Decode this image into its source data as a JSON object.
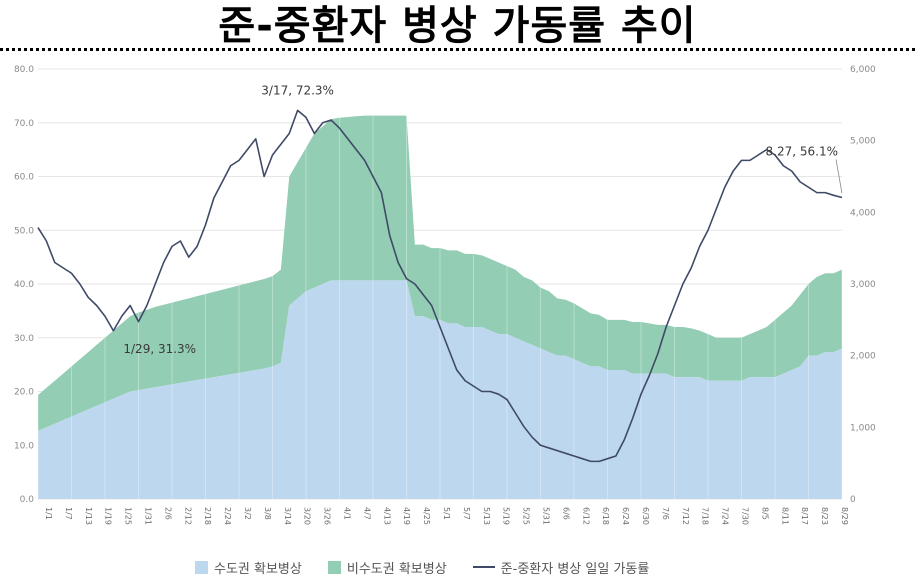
{
  "title": "준-중환자 병상 가동률 추이",
  "chart_data": {
    "type": "area",
    "y_left": {
      "min": 0,
      "max": 80,
      "ticks": [
        "0.0",
        "10.0",
        "20.0",
        "30.0",
        "40.0",
        "50.0",
        "60.0",
        "70.0",
        "80.0"
      ]
    },
    "y_right": {
      "min": 0,
      "max": 6000,
      "ticks": [
        "0",
        "1,000",
        "2,000",
        "3,000",
        "4,000",
        "5,000",
        "6,000"
      ]
    },
    "n_points": 97,
    "x_ticks": [
      "1/1",
      "1/7",
      "1/13",
      "1/19",
      "1/25",
      "1/31",
      "2/6",
      "2/12",
      "2/18",
      "2/24",
      "3/2",
      "3/8",
      "3/14",
      "3/20",
      "3/26",
      "4/1",
      "4/7",
      "4/13",
      "4/19",
      "4/25",
      "5/1",
      "5/7",
      "5/13",
      "5/19",
      "5/25",
      "5/31",
      "6/6",
      "6/12",
      "6/18",
      "6/24",
      "6/30",
      "7/6",
      "7/12",
      "7/18",
      "7/24",
      "7/30",
      "8/5",
      "8/11",
      "8/17",
      "8/23",
      "8/29"
    ],
    "series": [
      {
        "name": "수도권 확보병상",
        "color": "#bdd7ee",
        "axis": "right",
        "values": [
          950,
          1000,
          1050,
          1100,
          1150,
          1200,
          1250,
          1300,
          1350,
          1400,
          1450,
          1500,
          1520,
          1540,
          1560,
          1580,
          1600,
          1620,
          1640,
          1660,
          1680,
          1700,
          1720,
          1740,
          1760,
          1780,
          1800,
          1820,
          1850,
          1900,
          2700,
          2800,
          2900,
          2950,
          3000,
          3050,
          3050,
          3050,
          3050,
          3050,
          3050,
          3050,
          3050,
          3050,
          3050,
          2550,
          2550,
          2500,
          2500,
          2450,
          2450,
          2400,
          2400,
          2400,
          2350,
          2300,
          2300,
          2250,
          2200,
          2150,
          2100,
          2050,
          2000,
          2000,
          1950,
          1900,
          1850,
          1850,
          1800,
          1800,
          1800,
          1750,
          1750,
          1750,
          1750,
          1750,
          1700,
          1700,
          1700,
          1700,
          1650,
          1650,
          1650,
          1650,
          1650,
          1700,
          1700,
          1700,
          1700,
          1750,
          1800,
          1850,
          2000,
          2000,
          2050,
          2050,
          2100
        ]
      },
      {
        "name": "비수도권 확보병상",
        "color": "#93cdb4",
        "axis": "right",
        "values": [
          500,
          550,
          600,
          650,
          700,
          750,
          800,
          850,
          900,
          950,
          1000,
          1050,
          1080,
          1100,
          1120,
          1130,
          1140,
          1150,
          1160,
          1170,
          1180,
          1190,
          1200,
          1210,
          1220,
          1230,
          1240,
          1250,
          1260,
          1300,
          1800,
          1900,
          2000,
          2150,
          2200,
          2250,
          2270,
          2280,
          2290,
          2300,
          2300,
          2300,
          2300,
          2300,
          2300,
          1000,
          1000,
          1000,
          1000,
          1020,
          1020,
          1020,
          1020,
          1000,
          1000,
          1000,
          950,
          950,
          900,
          900,
          850,
          850,
          800,
          780,
          780,
          760,
          740,
          720,
          700,
          700,
          700,
          720,
          720,
          700,
          680,
          680,
          700,
          700,
          680,
          650,
          650,
          600,
          600,
          600,
          600,
          600,
          650,
          700,
          800,
          850,
          900,
          1000,
          1000,
          1100,
          1100,
          1100,
          1100
        ]
      },
      {
        "name": "준-중환자 병상 일일 가동률",
        "color": "#3f4a66",
        "axis": "left",
        "values": [
          50.5,
          48,
          44,
          43,
          42,
          40,
          37.5,
          36,
          34,
          31.3,
          34,
          36,
          33,
          36,
          40,
          44,
          47,
          48,
          45,
          47,
          51,
          56,
          59,
          62,
          63,
          65,
          67,
          60,
          64,
          66,
          68,
          72.3,
          71,
          68,
          70,
          70.5,
          69,
          67,
          65,
          63,
          60,
          57,
          49,
          44,
          41,
          40,
          38,
          36,
          32,
          28,
          24,
          22,
          21,
          20,
          20,
          19.5,
          18.5,
          16,
          13.5,
          11.5,
          10,
          9.5,
          9,
          8.5,
          8,
          7.5,
          7,
          7,
          7.5,
          8,
          11,
          15,
          19.5,
          23,
          27,
          32,
          36,
          40,
          43,
          47,
          50,
          54,
          58,
          61,
          63,
          63,
          64,
          65,
          64,
          62,
          61,
          59,
          58,
          57,
          57,
          56.5,
          56.1
        ]
      }
    ],
    "annotations": [
      {
        "text": "1/29, 31.3%",
        "index": 9
      },
      {
        "text": "3/17, 72.3%",
        "index": 31
      },
      {
        "text": "8.27, 56.1%",
        "index": 96
      }
    ],
    "legend": "bottom",
    "grid": true
  }
}
